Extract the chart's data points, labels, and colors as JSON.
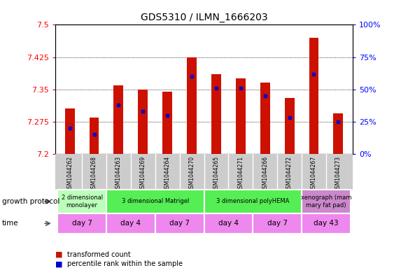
{
  "title": "GDS5310 / ILMN_1666203",
  "samples": [
    "GSM1044262",
    "GSM1044268",
    "GSM1044263",
    "GSM1044269",
    "GSM1044264",
    "GSM1044270",
    "GSM1044265",
    "GSM1044271",
    "GSM1044266",
    "GSM1044272",
    "GSM1044267",
    "GSM1044273"
  ],
  "transformed_counts": [
    7.305,
    7.285,
    7.36,
    7.35,
    7.345,
    7.425,
    7.385,
    7.375,
    7.365,
    7.33,
    7.47,
    7.295
  ],
  "percentile_ranks": [
    20,
    15,
    38,
    33,
    30,
    60,
    51,
    51,
    45,
    28,
    62,
    25
  ],
  "y_min": 7.2,
  "y_max": 7.5,
  "y_ticks": [
    7.2,
    7.275,
    7.35,
    7.425,
    7.5
  ],
  "y_tick_labels": [
    "7.2",
    "7.275",
    "7.35",
    "7.425",
    "7.5"
  ],
  "right_y_ticks": [
    0,
    25,
    50,
    75,
    100
  ],
  "right_y_labels": [
    "0%",
    "25%",
    "50%",
    "75%",
    "100%"
  ],
  "bar_color": "#CC1100",
  "percentile_color": "#0000CC",
  "sample_bg_color": "#cccccc",
  "growth_protocol_groups": [
    {
      "label": "2 dimensional\nmonolayer",
      "start": 0,
      "end": 2,
      "color": "#bbffbb"
    },
    {
      "label": "3 dimensional Matrigel",
      "start": 2,
      "end": 6,
      "color": "#55ee55"
    },
    {
      "label": "3 dimensional polyHEMA",
      "start": 6,
      "end": 10,
      "color": "#55ee55"
    },
    {
      "label": "xenograph (mam\nmary fat pad)",
      "start": 10,
      "end": 12,
      "color": "#cc88cc"
    }
  ],
  "time_groups": [
    {
      "label": "day 7",
      "start": 0,
      "end": 2,
      "color": "#ee88ee"
    },
    {
      "label": "day 4",
      "start": 2,
      "end": 4,
      "color": "#ee88ee"
    },
    {
      "label": "day 7",
      "start": 4,
      "end": 6,
      "color": "#ee88ee"
    },
    {
      "label": "day 4",
      "start": 6,
      "end": 8,
      "color": "#ee88ee"
    },
    {
      "label": "day 7",
      "start": 8,
      "end": 10,
      "color": "#ee88ee"
    },
    {
      "label": "day 43",
      "start": 10,
      "end": 12,
      "color": "#ee88ee"
    }
  ],
  "bar_width": 0.4
}
